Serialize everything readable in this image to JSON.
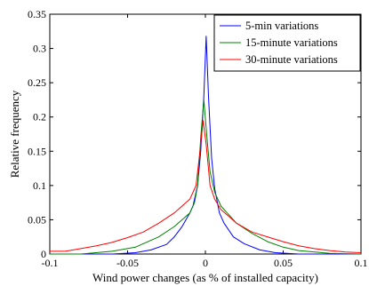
{
  "chart_data": {
    "type": "line",
    "title": "",
    "xlabel": "Wind power changes (as % of installed capacity)",
    "ylabel": "Relative frequency",
    "xlim": [
      -0.1,
      0.1
    ],
    "ylim": [
      0,
      0.35
    ],
    "x_ticks": [
      -0.1,
      -0.05,
      0,
      0.05,
      0.1
    ],
    "x_tick_labels": [
      "-0.1",
      "-0.05",
      "0",
      "0.05",
      "0.1"
    ],
    "y_ticks": [
      0,
      0.05,
      0.1,
      0.15,
      0.2,
      0.25,
      0.3,
      0.35
    ],
    "y_tick_labels": [
      "0",
      "0.05",
      "0.1",
      "0.15",
      "0.2",
      "0.25",
      "0.3",
      "0.35"
    ],
    "grid": false,
    "legend_position": "top-right",
    "series": [
      {
        "name": "5-min variations",
        "color": "#0000ff",
        "points": [
          [
            -0.1,
            0
          ],
          [
            -0.06,
            0
          ],
          [
            -0.045,
            0.002
          ],
          [
            -0.035,
            0.006
          ],
          [
            -0.025,
            0.014
          ],
          [
            -0.02,
            0.025
          ],
          [
            -0.015,
            0.04
          ],
          [
            -0.01,
            0.06
          ],
          [
            -0.008,
            0.07
          ],
          [
            -0.005,
            0.1
          ],
          [
            -0.003,
            0.15
          ],
          [
            -0.001,
            0.23
          ],
          [
            0.0005,
            0.318
          ],
          [
            0.002,
            0.23
          ],
          [
            0.004,
            0.14
          ],
          [
            0.006,
            0.095
          ],
          [
            0.009,
            0.06
          ],
          [
            0.012,
            0.045
          ],
          [
            0.018,
            0.025
          ],
          [
            0.025,
            0.015
          ],
          [
            0.035,
            0.006
          ],
          [
            0.045,
            0.002
          ],
          [
            0.06,
            0
          ],
          [
            0.1,
            0
          ]
        ]
      },
      {
        "name": "15-minute variations",
        "color": "#008000",
        "points": [
          [
            -0.1,
            0
          ],
          [
            -0.08,
            0
          ],
          [
            -0.06,
            0.004
          ],
          [
            -0.045,
            0.01
          ],
          [
            -0.03,
            0.025
          ],
          [
            -0.02,
            0.04
          ],
          [
            -0.01,
            0.06
          ],
          [
            -0.007,
            0.075
          ],
          [
            -0.005,
            0.1
          ],
          [
            -0.003,
            0.17
          ],
          [
            -0.001,
            0.225
          ],
          [
            0.001,
            0.17
          ],
          [
            0.003,
            0.12
          ],
          [
            0.006,
            0.09
          ],
          [
            0.01,
            0.07
          ],
          [
            0.02,
            0.045
          ],
          [
            0.03,
            0.03
          ],
          [
            0.04,
            0.018
          ],
          [
            0.05,
            0.01
          ],
          [
            0.06,
            0.005
          ],
          [
            0.08,
            0.001
          ],
          [
            0.1,
            0
          ]
        ]
      },
      {
        "name": "30-minute variations",
        "color": "#ff0000",
        "points": [
          [
            -0.1,
            0.004
          ],
          [
            -0.09,
            0.004
          ],
          [
            -0.08,
            0.008
          ],
          [
            -0.07,
            0.012
          ],
          [
            -0.06,
            0.017
          ],
          [
            -0.05,
            0.024
          ],
          [
            -0.04,
            0.032
          ],
          [
            -0.03,
            0.045
          ],
          [
            -0.02,
            0.06
          ],
          [
            -0.01,
            0.08
          ],
          [
            -0.006,
            0.1
          ],
          [
            -0.003,
            0.16
          ],
          [
            -0.0015,
            0.195
          ],
          [
            0.0005,
            0.16
          ],
          [
            0.003,
            0.1
          ],
          [
            0.006,
            0.08
          ],
          [
            0.01,
            0.065
          ],
          [
            0.02,
            0.045
          ],
          [
            0.03,
            0.032
          ],
          [
            0.04,
            0.025
          ],
          [
            0.05,
            0.018
          ],
          [
            0.06,
            0.012
          ],
          [
            0.07,
            0.008
          ],
          [
            0.08,
            0.005
          ],
          [
            0.09,
            0.003
          ],
          [
            0.1,
            0.002
          ]
        ]
      }
    ]
  }
}
